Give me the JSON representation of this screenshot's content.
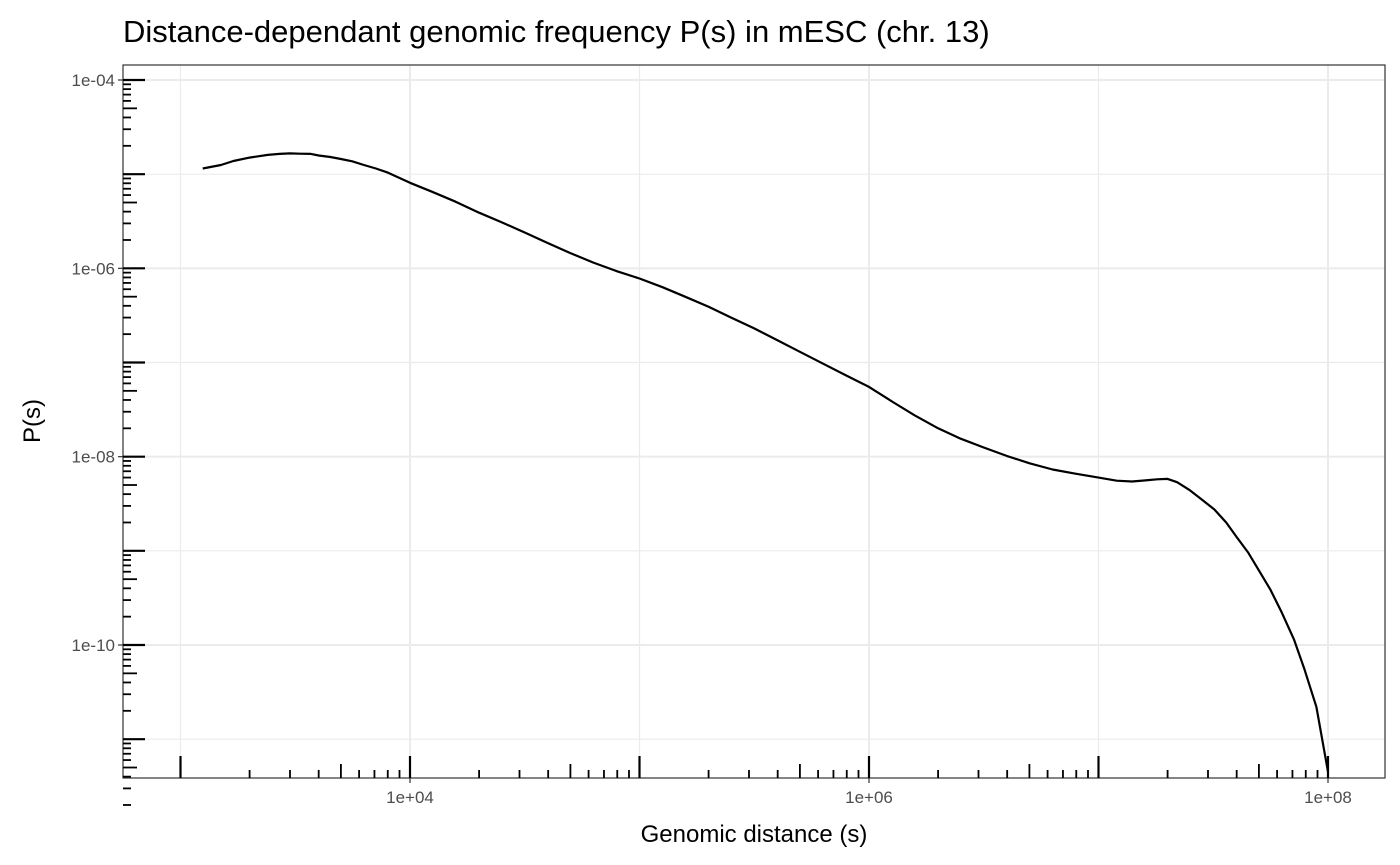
{
  "chart_data": {
    "type": "line",
    "title": "Distance-dependant genomic frequency P(s) in mESC (chr. 13)",
    "xlabel": "Genomic distance (s)",
    "ylabel": "P(s)",
    "x_scale": "log10",
    "y_scale": "log10",
    "xlim": [
      1000,
      150000000
    ],
    "ylim": [
      2e-12,
      0.00015
    ],
    "x_ticks": [
      {
        "value": 10000,
        "label": "1e+04"
      },
      {
        "value": 1000000,
        "label": "1e+06"
      },
      {
        "value": 100000000,
        "label": "1e+08"
      }
    ],
    "y_ticks": [
      {
        "value": 0.0001,
        "label": "1e-04"
      },
      {
        "value": 1e-06,
        "label": "1e-06"
      },
      {
        "value": 1e-08,
        "label": "1e-08"
      },
      {
        "value": 1e-10,
        "label": "1e-10"
      }
    ],
    "grid": true,
    "legend": "none",
    "line_color": "#000000",
    "series": [
      {
        "x": [
          1250,
          1500,
          1700,
          2000,
          2400,
          2700,
          3000,
          3300,
          3700,
          4000,
          4500,
          5000,
          5600,
          6300,
          7100,
          8000,
          10000,
          12500,
          15800,
          20000,
          25000,
          31600,
          40000,
          50000,
          63000,
          79000,
          100000,
          126000,
          158000,
          200000,
          251000,
          316000,
          398000,
          500000,
          631000,
          794000,
          1000000,
          1260000,
          1580000,
          2000000,
          2510000,
          3160000,
          3980000,
          5010000,
          6310000,
          7940000,
          10000000,
          12000000,
          14000000,
          16000000,
          18000000,
          20000000,
          22000000,
          25000000,
          28000000,
          32000000,
          36000000,
          40000000,
          45000000,
          50000000,
          56000000,
          63000000,
          71000000,
          79000000,
          89000000,
          100000000
        ],
        "y": [
          1.15e-05,
          1.25e-05,
          1.38e-05,
          1.5e-05,
          1.6e-05,
          1.64e-05,
          1.66e-05,
          1.65e-05,
          1.64e-05,
          1.58e-05,
          1.52e-05,
          1.45e-05,
          1.37e-05,
          1.25e-05,
          1.15e-05,
          1.04e-05,
          8.1e-06,
          6.5e-06,
          5.1e-06,
          3.9e-06,
          3.1e-06,
          2.4e-06,
          1.85e-06,
          1.45e-06,
          1.15e-06,
          9.4e-07,
          7.8e-07,
          6.3e-07,
          5e-07,
          3.9e-07,
          3e-07,
          2.3e-07,
          1.73e-07,
          1.3e-07,
          9.7e-08,
          7.3e-08,
          5.5e-08,
          3.85e-08,
          2.75e-08,
          2e-08,
          1.55e-08,
          1.25e-08,
          1.02e-08,
          8.5e-09,
          7.3e-09,
          6.6e-09,
          6e-09,
          5.55e-09,
          5.45e-09,
          5.6e-09,
          5.75e-09,
          5.8e-09,
          5.35e-09,
          4.4e-09,
          3.55e-09,
          2.75e-09,
          2e-09,
          1.4e-09,
          9.5e-10,
          6.2e-10,
          3.9e-10,
          2.2e-10,
          1.15e-10,
          5.5e-11,
          2.2e-11,
          4.5e-12
        ]
      }
    ]
  }
}
